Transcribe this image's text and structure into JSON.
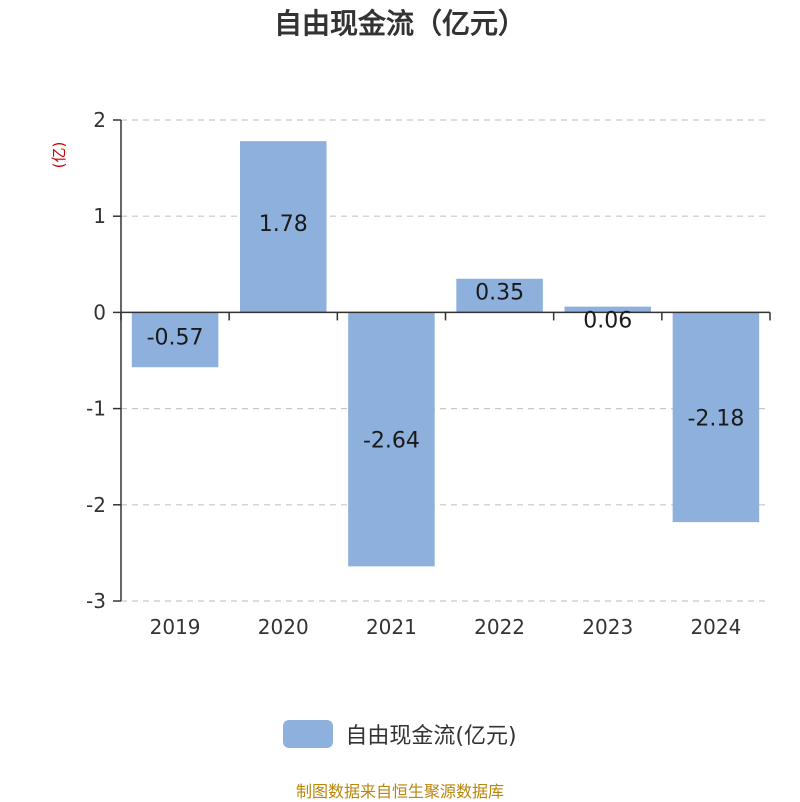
{
  "chart_data": {
    "type": "bar",
    "title": "自由现金流（亿元）",
    "ylabel": "(亿)",
    "categories": [
      "2019",
      "2020",
      "2021",
      "2022",
      "2023",
      "2024"
    ],
    "series": [
      {
        "name": "自由现金流(亿元)",
        "values": [
          -0.57,
          1.78,
          -2.64,
          0.35,
          0.06,
          -2.18
        ],
        "labels": [
          "-0.57",
          "1.78",
          "-2.64",
          "0.35",
          "0.06",
          "-2.18"
        ]
      }
    ],
    "ylim": [
      -3,
      2
    ],
    "yticks": [
      2,
      1,
      0,
      -1,
      -2,
      -3
    ],
    "ytick_labels": [
      "2",
      "1",
      "0",
      "-1",
      "-2",
      "-3"
    ],
    "grid": true,
    "legend_position": "bottom",
    "bar_color": "#8eb0dc",
    "axis_label_color": "#cc0000"
  },
  "footer": {
    "source": "制图数据来自恒生聚源数据库"
  }
}
